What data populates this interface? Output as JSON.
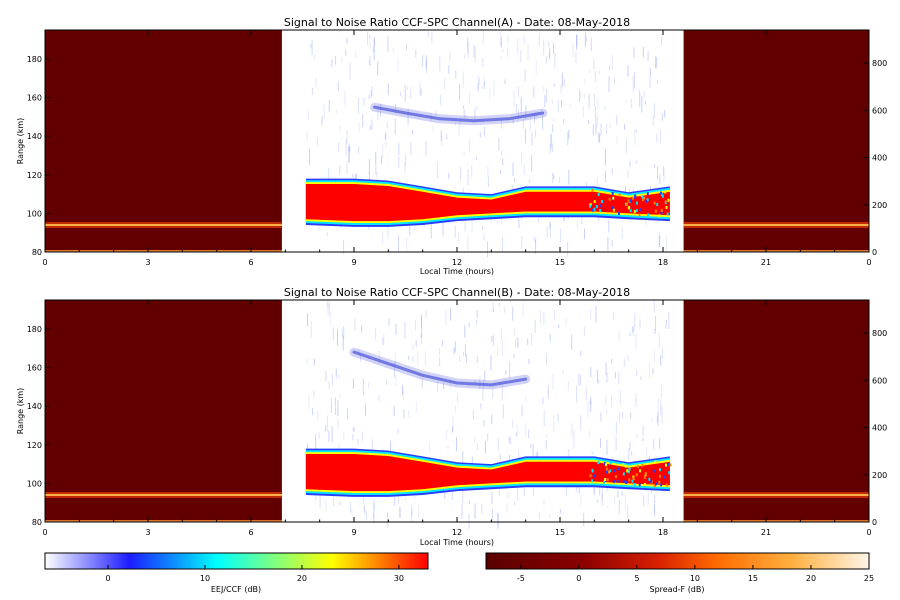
{
  "chart_data": [
    {
      "type": "heatmap",
      "title": "Signal to Noise Ratio CCF-SPC Channel(A) - Date: 08-May-2018",
      "xlabel": "Local Time (hours)",
      "ylabel": "Range (km)",
      "x_ticks": [
        "0",
        "3",
        "6",
        "9",
        "12",
        "15",
        "18",
        "21",
        "0"
      ],
      "y_ticks": [
        "80",
        "100",
        "120",
        "140",
        "160",
        "180"
      ],
      "y_right_ticks": [
        "0",
        "200",
        "400",
        "600",
        "800"
      ],
      "xlim": [
        0,
        24
      ],
      "ylim": [
        80,
        195
      ],
      "y_right_lim": [
        0,
        940
      ],
      "spread_f_periods": [
        [
          0,
          6.9
        ],
        [
          18.6,
          24
        ]
      ],
      "spread_f_layer_km": 94,
      "eej_time_range": [
        7.6,
        18.2
      ],
      "eej_layer": {
        "x": [
          7.6,
          9,
          10,
          11,
          12,
          13,
          14,
          15,
          16,
          17,
          18.2
        ],
        "top_km": [
          117,
          117,
          116,
          113,
          110,
          109,
          113,
          113,
          113,
          110,
          113
        ],
        "bottom_km": [
          97,
          96,
          96,
          97,
          99,
          100,
          101,
          101,
          101,
          100,
          99
        ]
      },
      "ccf_echo": {
        "x": [
          9.6,
          10.5,
          11.5,
          12.5,
          13.5,
          14.5
        ],
        "range_km": [
          155,
          152,
          149,
          148,
          149,
          152
        ]
      }
    },
    {
      "type": "heatmap",
      "title": "Signal to Noise Ratio CCF-SPC Channel(B) - Date: 08-May-2018",
      "xlabel": "Local Time (hours)",
      "ylabel": "Range (km)",
      "x_ticks": [
        "0",
        "3",
        "6",
        "9",
        "12",
        "15",
        "18",
        "21",
        "0"
      ],
      "y_ticks": [
        "80",
        "100",
        "120",
        "140",
        "160",
        "180"
      ],
      "y_right_ticks": [
        "0",
        "200",
        "400",
        "600",
        "800"
      ],
      "xlim": [
        0,
        24
      ],
      "ylim": [
        80,
        195
      ],
      "y_right_lim": [
        0,
        940
      ],
      "spread_f_periods": [
        [
          0,
          6.9
        ],
        [
          18.6,
          24
        ]
      ],
      "spread_f_layer_km": 94,
      "eej_time_range": [
        7.6,
        18.2
      ],
      "eej_layer": {
        "x": [
          7.6,
          9,
          10,
          11,
          12,
          13,
          14,
          15,
          16,
          17,
          18.2
        ],
        "top_km": [
          117,
          117,
          116,
          113,
          110,
          109,
          113,
          113,
          113,
          110,
          113
        ],
        "bottom_km": [
          97,
          96,
          96,
          97,
          99,
          100,
          101,
          101,
          101,
          100,
          99
        ]
      },
      "ccf_echo": {
        "x": [
          9.0,
          10.0,
          11.0,
          12.0,
          13.0,
          14.0
        ],
        "range_km": [
          168,
          162,
          156,
          152,
          151,
          154
        ]
      }
    }
  ],
  "colorbars": [
    {
      "label": "EEJ/CCF (dB)",
      "ticks": [
        "0",
        "10",
        "20",
        "30"
      ],
      "range": [
        -6.5,
        33
      ],
      "colors": [
        "#ffffff",
        "#1c1cff",
        "#00ffff",
        "#ffff00",
        "#ff0000"
      ]
    },
    {
      "label": "Spread-F (dB)",
      "ticks": [
        "-5",
        "0",
        "5",
        "10",
        "15",
        "20",
        "25"
      ],
      "range": [
        -8,
        25
      ],
      "colors": [
        "#5a0000",
        "#8a0000",
        "#d82000",
        "#ff6a00",
        "#ffb040",
        "#fff6e8"
      ]
    }
  ]
}
